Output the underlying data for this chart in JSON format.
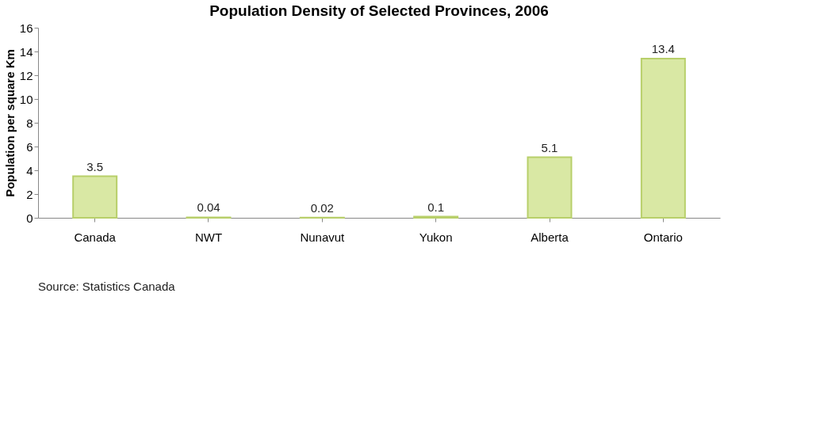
{
  "chart_data": {
    "type": "bar",
    "title": "Population Density of Selected Provinces, 2006",
    "ylabel": "Population per square Km",
    "categories": [
      "Canada",
      "NWT",
      "Nunavut",
      "Yukon",
      "Alberta",
      "Ontario"
    ],
    "values": [
      3.5,
      0.04,
      0.02,
      0.1,
      5.1,
      13.4
    ],
    "color": "#d9e8a4",
    "ylim": [
      0,
      16
    ],
    "yticks": [
      0,
      2,
      4,
      6,
      8,
      10,
      12,
      14,
      16
    ],
    "grid": false,
    "data_labels": true,
    "annotations": [
      "Source: Statistics Canada"
    ]
  }
}
